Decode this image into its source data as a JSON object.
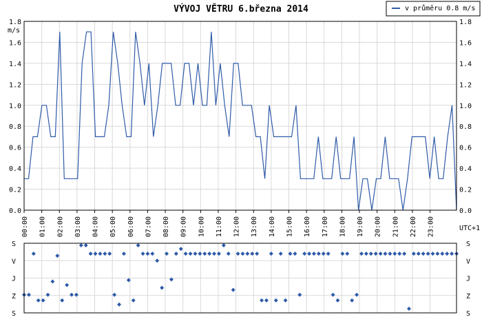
{
  "chart_data": [
    {
      "type": "line",
      "title": "VÝVOJ VĚTRU  6.března 2014",
      "ylabel": "m/s",
      "xlabel": "UTC+1",
      "ylim": [
        0,
        1.8
      ],
      "y_ticks": [
        "0.0",
        "0.2",
        "0.4",
        "0.6",
        "0.8",
        "1.0",
        "1.2",
        "1.4",
        "1.6",
        "1.8"
      ],
      "x_ticks": [
        "00:00",
        "01:00",
        "02:00",
        "03:00",
        "04:00",
        "05:00",
        "06:00",
        "07:00",
        "08:00",
        "09:00",
        "10:00",
        "11:00",
        "12:00",
        "13:00",
        "14:00",
        "15:00",
        "16:00",
        "17:00",
        "18:00",
        "19:00",
        "20:00",
        "21:00",
        "22:00",
        "23:00"
      ],
      "grid": true,
      "legend_position": "top-right",
      "series": [
        {
          "name": "v průměru 0.8 m/s",
          "color": "#2e5aa8",
          "values": [
            0.3,
            0.3,
            0.7,
            0.7,
            1.0,
            1.0,
            0.7,
            0.7,
            1.7,
            0.3,
            0.3,
            0.3,
            0.3,
            1.4,
            1.7,
            1.7,
            0.7,
            0.7,
            0.7,
            1.0,
            1.7,
            1.4,
            1.0,
            0.7,
            0.7,
            1.7,
            1.4,
            1.0,
            1.4,
            0.7,
            1.0,
            1.4,
            1.4,
            1.4,
            1.0,
            1.0,
            1.4,
            1.4,
            1.0,
            1.4,
            1.0,
            1.0,
            1.7,
            1.0,
            1.4,
            1.0,
            0.7,
            1.4,
            1.4,
            1.0,
            1.0,
            1.0,
            0.7,
            0.7,
            0.3,
            1.0,
            0.7,
            0.7,
            0.7,
            0.7,
            0.7,
            1.0,
            0.3,
            0.3,
            0.3,
            0.3,
            0.7,
            0.3,
            0.3,
            0.3,
            0.7,
            0.3,
            0.3,
            0.3,
            0.7,
            0.0,
            0.3,
            0.3,
            0.0,
            0.3,
            0.3,
            0.7,
            0.3,
            0.3,
            0.3,
            0.0,
            0.3,
            0.7,
            0.7,
            0.7,
            0.7,
            0.3,
            0.7,
            0.3,
            0.3,
            0.7,
            1.0,
            0.0
          ]
        }
      ]
    },
    {
      "type": "scatter",
      "y_ticks": [
        "S",
        "V",
        "J",
        "Z",
        "S"
      ],
      "y_values_note_free": true,
      "series": [
        {
          "name": "",
          "color": "#2e5aa8",
          "values": [
            0.26,
            0.26,
            0.85,
            0.18,
            0.18,
            0.26,
            0.45,
            0.82,
            0.18,
            0.4,
            0.26,
            0.26,
            0.97,
            0.97,
            0.85,
            0.85,
            0.85,
            0.85,
            0.85,
            0.26,
            0.12,
            0.85,
            0.47,
            0.18,
            0.97,
            0.85,
            0.85,
            0.85,
            0.75,
            0.36,
            0.85,
            0.48,
            0.85,
            0.92,
            0.85,
            0.85,
            0.85,
            0.85,
            0.85,
            0.85,
            0.85,
            0.85,
            0.97,
            0.85,
            0.33,
            0.85,
            0.85,
            0.85,
            0.85,
            0.85,
            0.18,
            0.18,
            0.85,
            0.18,
            0.85,
            0.18,
            0.85,
            0.85,
            0.26,
            0.85,
            0.85,
            0.85,
            0.85,
            0.85,
            0.85,
            0.26,
            0.18,
            0.85,
            0.85,
            0.18,
            0.26,
            0.85,
            0.85,
            0.85,
            0.85,
            0.85,
            0.85,
            0.85,
            0.85,
            0.85,
            0.85,
            0.06,
            0.85,
            0.85,
            0.85,
            0.85,
            0.85,
            0.85,
            0.85,
            0.85,
            0.85,
            0.85
          ]
        }
      ]
    }
  ]
}
